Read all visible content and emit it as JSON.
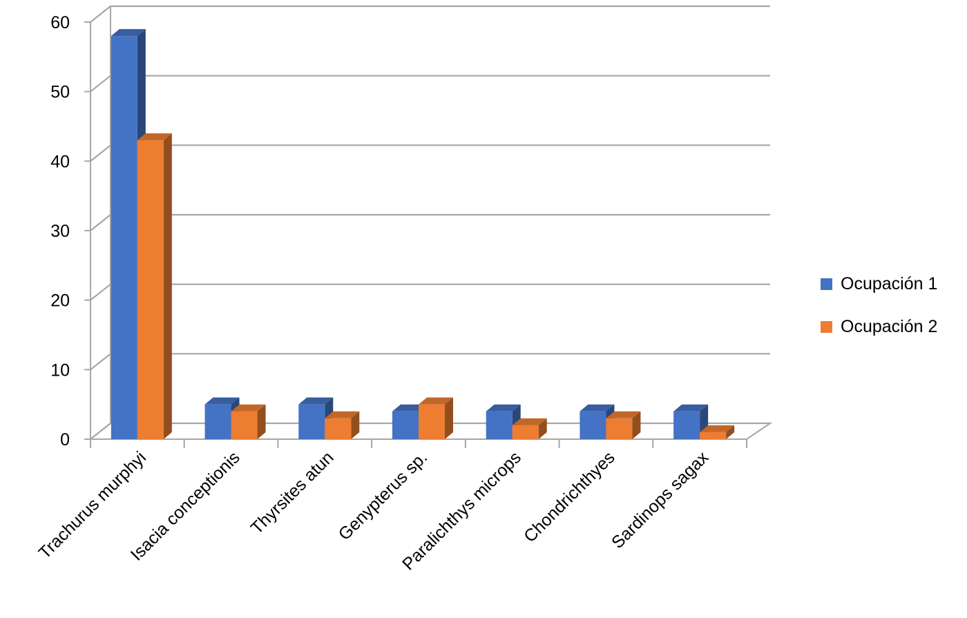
{
  "chart_data": {
    "type": "bar",
    "title": "",
    "xlabel": "",
    "ylabel": "",
    "categories": [
      "Trachurus murphyi",
      "Isacia conceptionis",
      "Thyrsites atun",
      "Genypterus sp.",
      "Paralichthys microps",
      "Chondrichthyes",
      "Sardinops sagax"
    ],
    "series": [
      {
        "name": "Ocupación 1",
        "values": [
          58,
          5,
          5,
          4,
          4,
          4,
          4
        ],
        "color": "#4472C4"
      },
      {
        "name": "Ocupación 2",
        "values": [
          43,
          4,
          3,
          5,
          2,
          3,
          1
        ],
        "color": "#ED7D31"
      }
    ],
    "ylim": [
      0,
      60
    ],
    "yticks": [
      "0",
      "10",
      "20",
      "30",
      "40",
      "50",
      "60"
    ],
    "grid": true,
    "legend_position": "right",
    "style": "3d-clustered-column"
  }
}
